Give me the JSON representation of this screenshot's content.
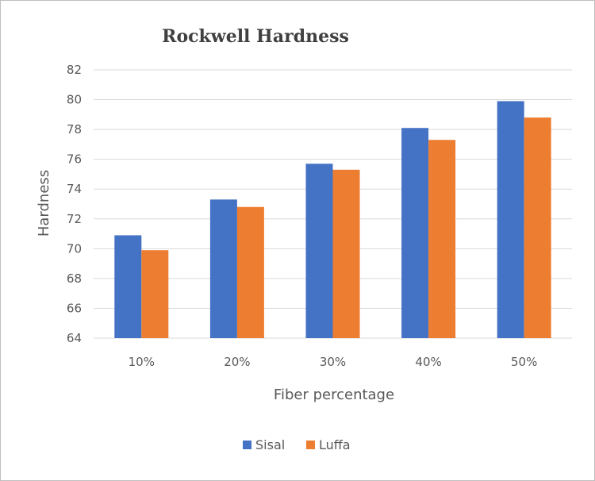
{
  "chart_data": {
    "type": "bar",
    "title": "Rockwell Hardness",
    "xlabel": "Fiber percentage",
    "ylabel": "Hardness",
    "categories": [
      "10%",
      "20%",
      "30%",
      "40%",
      "50%"
    ],
    "series": [
      {
        "name": "Sisal",
        "color": "#4472C4",
        "values": [
          70.9,
          73.3,
          75.7,
          78.1,
          79.9
        ]
      },
      {
        "name": "Luffa",
        "color": "#ED7D31",
        "values": [
          69.9,
          72.8,
          75.3,
          77.3,
          78.8
        ]
      }
    ],
    "ylim": [
      64,
      82
    ],
    "yticks": [
      64,
      66,
      68,
      70,
      72,
      74,
      76,
      78,
      80,
      82
    ],
    "grid": true,
    "legend_position": "bottom"
  }
}
